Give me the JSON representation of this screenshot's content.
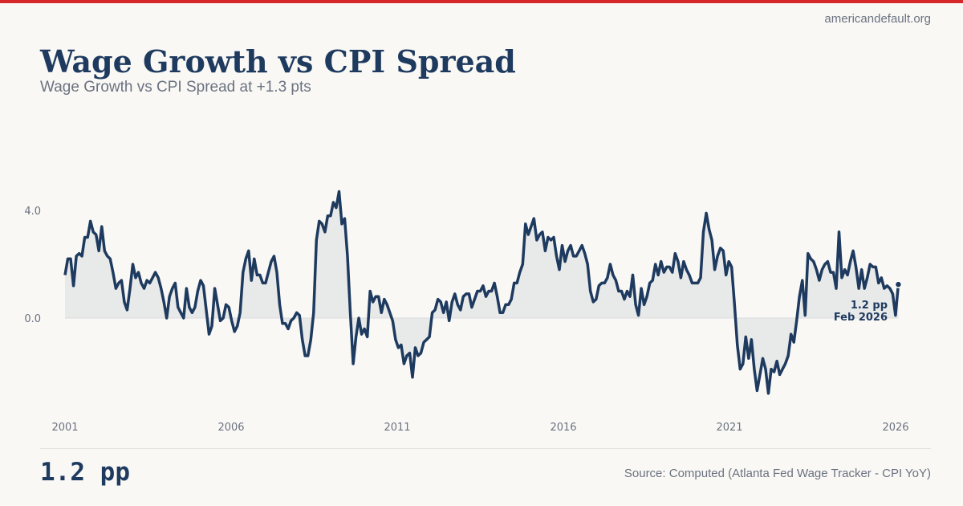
{
  "site": "americandefault.org",
  "title": "Wage Growth vs CPI Spread",
  "subtitle": "Wage Growth vs CPI Spread at +1.3 pts",
  "footer": {
    "headline_value": "1.2 pp",
    "source": "Source: Computed (Atlanta Fed Wage Tracker - CPI YoY)"
  },
  "colors": {
    "accent": "#d62828",
    "line": "#1e3a5f",
    "fill": "#e8e9e9",
    "muted": "#6b7280"
  },
  "chart_data": {
    "type": "area",
    "title": "Wage Growth vs CPI Spread",
    "xlabel": "",
    "ylabel": "pp",
    "x_start": 2001.0,
    "x_end": 2026.083,
    "frequency": "monthly",
    "xlim": [
      2001,
      2026
    ],
    "ylim": [
      -3.2,
      6.5
    ],
    "x_ticks": [
      "2001",
      "2006",
      "2011",
      "2016",
      "2021",
      "2026"
    ],
    "y_ticks": [
      "0.0",
      "4.0"
    ],
    "annotation": {
      "value": "1.2 pp",
      "date": "Feb 2026"
    },
    "values": [
      1.6,
      2.2,
      2.2,
      1.2,
      2.3,
      2.4,
      2.3,
      3.0,
      3.0,
      3.6,
      3.2,
      3.1,
      2.5,
      3.4,
      2.5,
      2.3,
      2.2,
      1.7,
      1.1,
      1.3,
      1.4,
      0.6,
      0.3,
      1.1,
      2.0,
      1.5,
      1.7,
      1.3,
      1.1,
      1.4,
      1.3,
      1.5,
      1.7,
      1.5,
      1.1,
      0.6,
      0.0,
      0.8,
      1.1,
      1.3,
      0.4,
      0.2,
      0.0,
      1.1,
      0.4,
      0.2,
      0.4,
      1.0,
      1.4,
      1.2,
      0.3,
      -0.6,
      -0.3,
      1.1,
      0.5,
      -0.1,
      0.0,
      0.5,
      0.4,
      -0.1,
      -0.5,
      -0.3,
      0.2,
      1.7,
      2.2,
      2.5,
      1.4,
      2.2,
      1.6,
      1.6,
      1.3,
      1.3,
      1.7,
      2.1,
      2.3,
      1.7,
      0.5,
      -0.2,
      -0.2,
      -0.4,
      -0.1,
      0.0,
      0.2,
      0.1,
      -0.8,
      -1.4,
      -1.4,
      -0.8,
      0.2,
      2.9,
      3.6,
      3.5,
      3.2,
      3.8,
      3.8,
      4.3,
      4.1,
      4.7,
      3.5,
      3.7,
      2.3,
      0.2,
      -1.7,
      -0.7,
      0.0,
      -0.6,
      -0.4,
      -0.7,
      1.0,
      0.6,
      0.8,
      0.8,
      0.2,
      0.7,
      0.5,
      0.2,
      -0.1,
      -0.8,
      -1.1,
      -1.0,
      -1.7,
      -1.4,
      -1.3,
      -2.2,
      -1.1,
      -1.4,
      -1.3,
      -0.9,
      -0.8,
      -0.7,
      0.2,
      0.3,
      0.7,
      0.6,
      0.2,
      0.6,
      -0.1,
      0.6,
      0.9,
      0.5,
      0.3,
      0.8,
      0.9,
      0.9,
      0.4,
      0.7,
      1.0,
      1.0,
      1.2,
      0.8,
      1.0,
      1.0,
      1.3,
      0.8,
      0.2,
      0.2,
      0.5,
      0.5,
      0.7,
      1.3,
      1.3,
      1.7,
      2.0,
      3.5,
      3.1,
      3.4,
      3.7,
      2.9,
      3.1,
      3.2,
      2.5,
      3.0,
      2.9,
      3.0,
      2.3,
      1.8,
      2.7,
      2.1,
      2.5,
      2.7,
      2.3,
      2.3,
      2.5,
      2.7,
      2.4,
      2.0,
      1.0,
      0.6,
      0.7,
      1.2,
      1.3,
      1.3,
      1.5,
      2.0,
      1.6,
      1.4,
      1.0,
      1.0,
      0.7,
      1.0,
      0.8,
      1.6,
      0.5,
      0.1,
      1.1,
      0.5,
      0.8,
      1.3,
      1.4,
      2.0,
      1.6,
      2.1,
      1.7,
      1.9,
      1.9,
      1.7,
      2.4,
      2.1,
      1.5,
      2.1,
      1.8,
      1.6,
      1.3,
      1.3,
      1.3,
      1.5,
      3.2,
      3.9,
      3.3,
      2.9,
      1.8,
      2.3,
      2.6,
      2.5,
      1.6,
      2.1,
      1.9,
      0.5,
      -1.0,
      -1.9,
      -1.7,
      -0.7,
      -1.5,
      -0.8,
      -1.9,
      -2.7,
      -2.1,
      -1.5,
      -1.9,
      -2.8,
      -1.9,
      -2.0,
      -1.6,
      -2.1,
      -1.9,
      -1.7,
      -1.4,
      -0.6,
      -0.9,
      -0.1,
      0.8,
      1.4,
      0.1,
      2.4,
      2.2,
      2.1,
      1.8,
      1.4,
      1.8,
      2.0,
      2.1,
      1.7,
      1.7,
      1.1,
      3.2,
      1.5,
      1.8,
      1.6,
      2.1,
      2.5,
      1.9,
      1.1,
      1.8,
      1.1,
      1.5,
      2.0,
      1.9,
      1.9,
      1.3,
      1.5,
      1.1,
      1.2,
      1.1,
      0.9,
      0.1,
      1.25
    ]
  }
}
